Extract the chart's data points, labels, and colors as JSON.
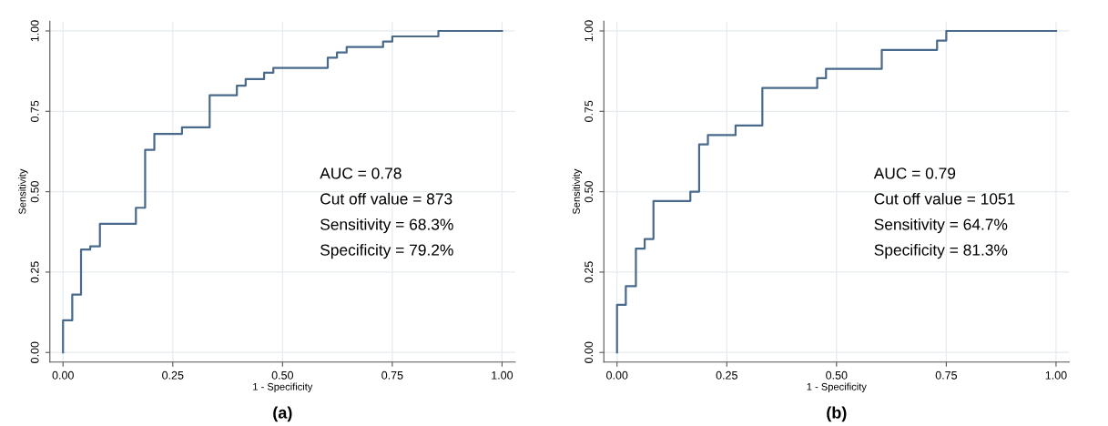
{
  "chart_data": [
    {
      "type": "step",
      "xlabel": "1 - Specificity",
      "ylabel": "Sensitivity",
      "x": [
        0,
        0,
        0.021,
        0.041,
        0.062,
        0.084,
        0.166,
        0.187,
        0.208,
        0.271,
        0.334,
        0.396,
        0.416,
        0.458,
        0.479,
        0.603,
        0.624,
        0.646,
        0.729,
        0.75,
        0.855,
        1.0
      ],
      "values": [
        0,
        0.1,
        0.18,
        0.32,
        0.33,
        0.4,
        0.45,
        0.63,
        0.68,
        0.7,
        0.8,
        0.83,
        0.85,
        0.87,
        0.885,
        0.917,
        0.933,
        0.95,
        0.967,
        0.983,
        1.0,
        1.0
      ],
      "color": "#4a6a8c",
      "xlim": [
        -0.03,
        1.03
      ],
      "ylim": [
        -0.03,
        1.03
      ],
      "xticks": [
        {
          "value": 0,
          "label": "0.00"
        },
        {
          "value": 0.25,
          "label": "0.25"
        },
        {
          "value": 0.5,
          "label": "0.50"
        },
        {
          "value": 0.75,
          "label": "0.75"
        },
        {
          "value": 1,
          "label": "1.00"
        }
      ],
      "yticks": [
        {
          "value": 0,
          "label": "0.00"
        },
        {
          "value": 0.25,
          "label": "0.25"
        },
        {
          "value": 0.5,
          "label": "0.50"
        },
        {
          "value": 0.75,
          "label": "0.75"
        },
        {
          "value": 1,
          "label": "1.00"
        }
      ],
      "grid": true,
      "annotations": [
        "AUC = 0.78",
        "Cut off value = 873",
        "Sensitivity = 68.3%",
        "Specificity = 79.2%",
        "(a)"
      ]
    },
    {
      "type": "step",
      "xlabel": "1 - Specificity",
      "ylabel": "Sensitivity",
      "x": [
        0,
        0,
        0.02,
        0.043,
        0.063,
        0.083,
        0.167,
        0.187,
        0.207,
        0.27,
        0.331,
        0.456,
        0.476,
        0.603,
        0.729,
        0.75,
        1.0
      ],
      "values": [
        0,
        0.148,
        0.206,
        0.323,
        0.353,
        0.471,
        0.5,
        0.647,
        0.676,
        0.706,
        0.823,
        0.853,
        0.882,
        0.941,
        0.97,
        1.0,
        1.0
      ],
      "color": "#4a6a8c",
      "xlim": [
        -0.03,
        1.03
      ],
      "ylim": [
        -0.03,
        1.03
      ],
      "xticks": [
        {
          "value": 0,
          "label": "0.00"
        },
        {
          "value": 0.25,
          "label": "0.25"
        },
        {
          "value": 0.5,
          "label": "0.50"
        },
        {
          "value": 0.75,
          "label": "0.75"
        },
        {
          "value": 1,
          "label": "1.00"
        }
      ],
      "yticks": [
        {
          "value": 0,
          "label": "0.00"
        },
        {
          "value": 0.25,
          "label": "0.25"
        },
        {
          "value": 0.5,
          "label": "0.50"
        },
        {
          "value": 0.75,
          "label": "0.75"
        },
        {
          "value": 1,
          "label": "1.00"
        }
      ],
      "grid": true,
      "annotations": [
        "AUC = 0.79",
        "Cut off value = 1051",
        "Sensitivity = 64.7%",
        "Specificity = 81.3%",
        "(b)"
      ]
    }
  ]
}
